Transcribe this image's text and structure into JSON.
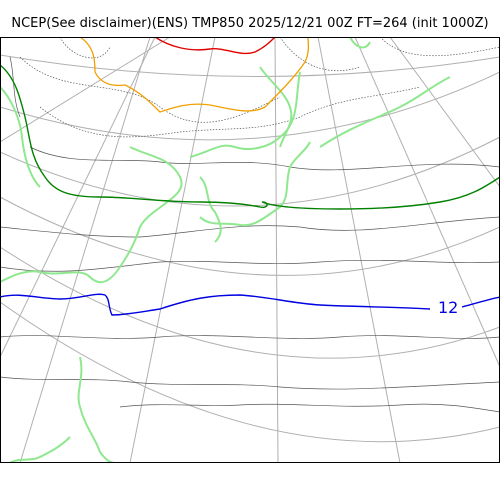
{
  "title": "NCEP(See disclaimer)(ENS) TMP850 2025/12/21 00Z FT=264 (init 1000Z)",
  "contour_labels": [
    {
      "text": "12",
      "color": "#0000e0"
    }
  ],
  "colors": {
    "coastline": "#8fe88f",
    "contour_green": "#008000",
    "contour_blue": "#0000e0",
    "contour_orange": "#f0a000",
    "contour_red": "#e00000",
    "isotherm": "#555555",
    "graticule": "#b0b0b0"
  }
}
